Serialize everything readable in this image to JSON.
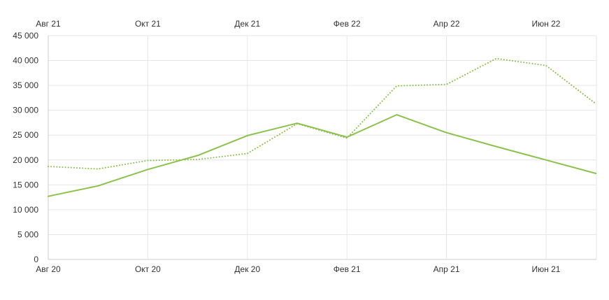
{
  "chart_data": {
    "type": "line",
    "title": "",
    "xlabel": "",
    "ylabel": "",
    "ylim": [
      0,
      45000
    ],
    "y_ticks": [
      "0",
      "5 000",
      "10 000",
      "15 000",
      "20 000",
      "25 000",
      "30 000",
      "35 000",
      "40 000",
      "45 000"
    ],
    "y_tick_values": [
      0,
      5000,
      10000,
      15000,
      20000,
      25000,
      30000,
      35000,
      40000,
      45000
    ],
    "grid": true,
    "bottom_axis": {
      "categories": [
        "Авг 20",
        "Сен 20",
        "Окт 20",
        "Ноя 20",
        "Дек 20",
        "Янв 21",
        "Фев 21",
        "Мар 21",
        "Апр 21",
        "Май 21",
        "Июн 21",
        "Июл 21"
      ],
      "tick_labels": [
        "Авг 20",
        "Окт 20",
        "Дек 20",
        "Фев 21",
        "Апр 21",
        "Июн 21"
      ]
    },
    "top_axis": {
      "categories": [
        "Авг 21",
        "Сен 21",
        "Окт 21",
        "Ноя 21",
        "Дек 21",
        "Янв 22",
        "Фев 22",
        "Мар 22",
        "Апр 22",
        "Май 22",
        "Июн 22",
        "Июл 22"
      ],
      "tick_labels": [
        "Авг 21",
        "Окт 21",
        "Дек 21",
        "Фев 22",
        "Апр 22",
        "Июн 22"
      ]
    },
    "series": [
      {
        "axis": "bottom",
        "style": "solid",
        "color": "#8cc14c",
        "values": [
          12700,
          14800,
          18100,
          20900,
          24900,
          27400,
          24600,
          29100,
          25500,
          22700,
          20000,
          17300
        ]
      },
      {
        "axis": "top",
        "style": "dotted",
        "color": "#8cc14c",
        "values": [
          18700,
          18200,
          19900,
          20100,
          21300,
          27300,
          24400,
          34900,
          35200,
          40400,
          39000,
          31300
        ]
      }
    ]
  }
}
